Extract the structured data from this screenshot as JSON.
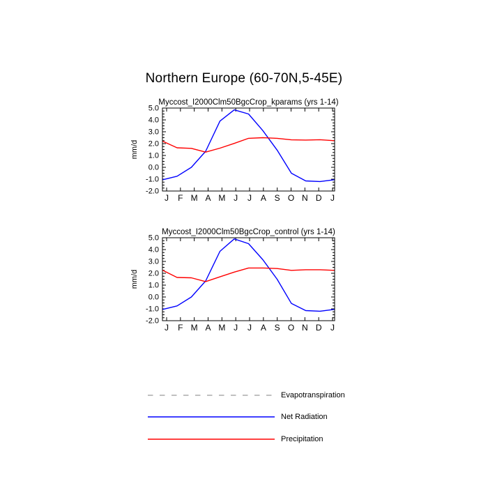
{
  "title": "Northern Europe (60-70N,5-45E)",
  "chart_data": [
    {
      "type": "line",
      "title": "Myccost_I2000Clm50BgcCrop_kparams (yrs 1-14)",
      "xlabel": "",
      "ylabel": "mm/d",
      "ylim": [
        -2.0,
        5.0
      ],
      "ytick_step": 1.0,
      "yminor_step": 0.25,
      "grid": false,
      "categories": [
        "J",
        "F",
        "M",
        "A",
        "M",
        "J",
        "J",
        "A",
        "S",
        "O",
        "N",
        "D",
        "J"
      ],
      "series": [
        {
          "name": "Net Radiation",
          "color": "#0000ff",
          "values": [
            -1.05,
            -0.75,
            0.0,
            1.35,
            3.9,
            4.85,
            4.5,
            3.1,
            1.45,
            -0.5,
            -1.15,
            -1.2,
            -1.05
          ]
        },
        {
          "name": "Precipitation",
          "color": "#ff0000",
          "values": [
            2.2,
            1.65,
            1.6,
            1.28,
            1.62,
            2.02,
            2.45,
            2.5,
            2.45,
            2.32,
            2.3,
            2.33,
            2.25
          ]
        }
      ]
    },
    {
      "type": "line",
      "title": "Myccost_I2000Clm50BgcCrop_control (yrs 1-14)",
      "xlabel": "",
      "ylabel": "mm/d",
      "ylim": [
        -2.0,
        5.0
      ],
      "ytick_step": 1.0,
      "yminor_step": 0.25,
      "grid": false,
      "categories": [
        "J",
        "F",
        "M",
        "A",
        "M",
        "J",
        "J",
        "A",
        "S",
        "O",
        "N",
        "D",
        "J"
      ],
      "series": [
        {
          "name": "Net Radiation",
          "color": "#0000ff",
          "values": [
            -1.05,
            -0.75,
            0.0,
            1.35,
            3.85,
            4.9,
            4.5,
            3.15,
            1.5,
            -0.55,
            -1.15,
            -1.2,
            -1.05
          ]
        },
        {
          "name": "Precipitation",
          "color": "#ff0000",
          "values": [
            2.25,
            1.65,
            1.62,
            1.3,
            1.7,
            2.1,
            2.45,
            2.45,
            2.4,
            2.25,
            2.3,
            2.3,
            2.25
          ]
        }
      ]
    }
  ],
  "legend": {
    "position": "bottom-left",
    "items": [
      {
        "label": "Evapotranspiration",
        "color": "#ababab",
        "style": "dashed"
      },
      {
        "label": "Net Radiation",
        "color": "#0000ff",
        "style": "solid"
      },
      {
        "label": "Precipitation",
        "color": "#ff0000",
        "style": "solid"
      }
    ]
  },
  "colors": {
    "background": "#ffffff",
    "frame": "#000000",
    "text": "#000000"
  }
}
